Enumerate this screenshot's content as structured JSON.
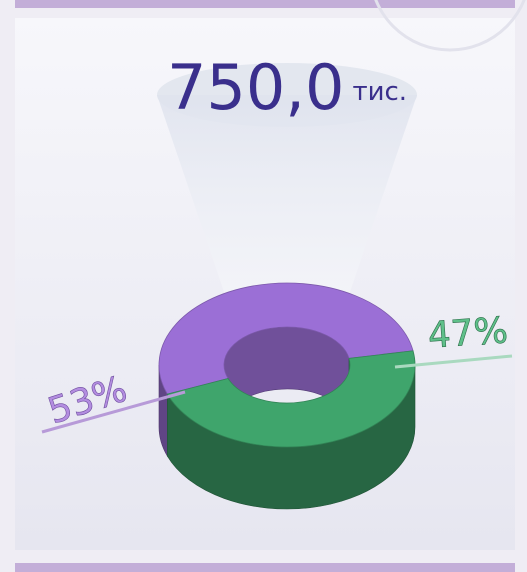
{
  "chart_data": {
    "type": "donut3d",
    "title": "750,0",
    "title_unit": "тис.",
    "categories": [
      null,
      null
    ],
    "values": [
      53,
      47
    ],
    "value_labels": [
      "53%",
      "47%"
    ],
    "colors": [
      "#9b6fd6",
      "#3fa56c"
    ]
  }
}
